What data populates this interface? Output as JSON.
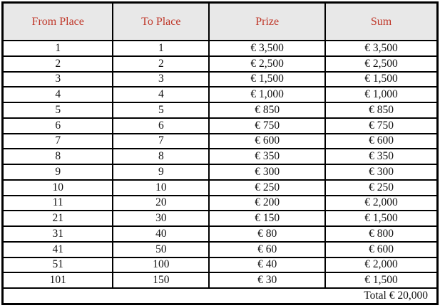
{
  "colors": {
    "header_text": "#c0392b",
    "header_background": "#e8e8e8",
    "border": "#000000",
    "body_text": "#111111"
  },
  "table": {
    "headers": [
      "From Place",
      "To Place",
      "Prize",
      "Sum"
    ],
    "rows": [
      [
        "1",
        "1",
        "€ 3,500",
        "€ 3,500"
      ],
      [
        "2",
        "2",
        "€ 2,500",
        "€ 2,500"
      ],
      [
        "3",
        "3",
        "€ 1,500",
        "€ 1,500"
      ],
      [
        "4",
        "4",
        "€ 1,000",
        "€ 1,000"
      ],
      [
        "5",
        "5",
        "€ 850",
        "€ 850"
      ],
      [
        "6",
        "6",
        "€ 750",
        "€ 750"
      ],
      [
        "7",
        "7",
        "€ 600",
        "€ 600"
      ],
      [
        "8",
        "8",
        "€ 350",
        "€ 350"
      ],
      [
        "9",
        "9",
        "€ 300",
        "€ 300"
      ],
      [
        "10",
        "10",
        "€ 250",
        "€ 250"
      ],
      [
        "11",
        "20",
        "€ 200",
        "€ 2,000"
      ],
      [
        "21",
        "30",
        "€ 150",
        "€ 1,500"
      ],
      [
        "31",
        "40",
        "€ 80",
        "€ 800"
      ],
      [
        "41",
        "50",
        "€ 60",
        "€ 600"
      ],
      [
        "51",
        "100",
        "€ 40",
        "€ 2,000"
      ],
      [
        "101",
        "150",
        "€ 30",
        "€ 1,500"
      ]
    ],
    "total_label": "Total € 20,000"
  }
}
